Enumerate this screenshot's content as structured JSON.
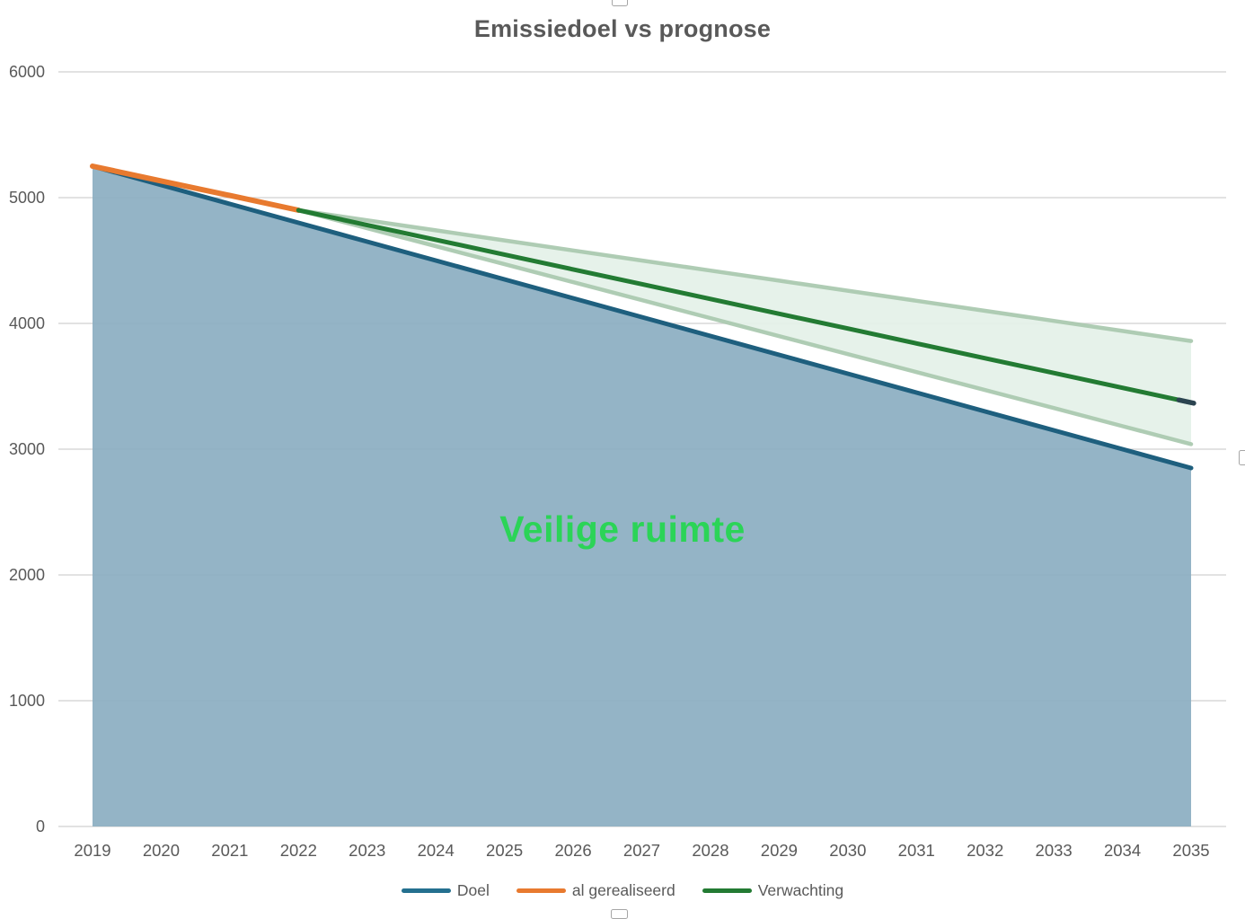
{
  "chart": {
    "title": "Emissiedoel vs prognose",
    "title_color": "#595959"
  },
  "legend": {
    "items": [
      {
        "label": "Doel",
        "color": "#24708F"
      },
      {
        "label": "al gerealiseerd",
        "color": "#E87A2F"
      },
      {
        "label": "Verwachting",
        "color": "#237B33"
      }
    ]
  },
  "selection": {
    "handle_border": "#A6A6A6",
    "handle_fill": "#FFFFFF"
  },
  "chart_data": {
    "type": "area",
    "title": "Emissiedoel vs prognose",
    "xlabel": "",
    "ylabel": "",
    "x": [
      2019,
      2020,
      2021,
      2022,
      2023,
      2024,
      2025,
      2026,
      2027,
      2028,
      2029,
      2030,
      2031,
      2032,
      2033,
      2034,
      2035
    ],
    "ylim": [
      0,
      6000
    ],
    "y_ticks": [
      0,
      1000,
      2000,
      3000,
      4000,
      5000,
      6000
    ],
    "grid": true,
    "grid_color": "#D9D9D9",
    "tick_color": "#595959",
    "legend_position": "bottom",
    "series": [
      {
        "name": "Doel",
        "kind": "area",
        "line_color": "#1E5F7E",
        "fill_color": "#8CAEC2",
        "x": [
          2019,
          2020,
          2021,
          2022,
          2023,
          2024,
          2025,
          2026,
          2027,
          2028,
          2029,
          2030,
          2031,
          2032,
          2033,
          2034,
          2035
        ],
        "values": [
          5250,
          5100,
          4950,
          4800,
          4650,
          4500,
          4350,
          4200,
          4050,
          3900,
          3750,
          3600,
          3450,
          3300,
          3150,
          3000,
          2850
        ]
      },
      {
        "name": "al gerealiseerd",
        "kind": "line",
        "line_color": "#E87A2F",
        "x": [
          2019,
          2020,
          2021,
          2022
        ],
        "values": [
          5250,
          5133,
          5017,
          4900
        ]
      },
      {
        "name": "Verwachting",
        "kind": "line",
        "line_color": "#237B33",
        "end_marker_color": "#2B4450",
        "x": [
          2022,
          2023,
          2024,
          2025,
          2026,
          2027,
          2028,
          2029,
          2030,
          2031,
          2032,
          2033,
          2034,
          2035
        ],
        "values": [
          4900,
          4782,
          4665,
          4547,
          4429,
          4312,
          4194,
          4076,
          3959,
          3841,
          3723,
          3606,
          3488,
          3370
        ]
      }
    ],
    "uncertainty_band": {
      "fill": "#E3F1E8",
      "edge_color": "#ABC9B0",
      "x": [
        2022,
        2023,
        2024,
        2025,
        2026,
        2027,
        2028,
        2029,
        2030,
        2031,
        2032,
        2033,
        2034,
        2035
      ],
      "upper": [
        4900,
        4820,
        4740,
        4660,
        4580,
        4500,
        4420,
        4340,
        4260,
        4180,
        4100,
        4020,
        3940,
        3860
      ],
      "lower": [
        4900,
        4757,
        4614,
        4471,
        4328,
        4185,
        4042,
        3899,
        3756,
        3613,
        3470,
        3327,
        3183,
        3040
      ]
    },
    "annotation": {
      "text": "Veilige ruimte",
      "color": "#2BD457",
      "x": 2026.7,
      "y": 2350
    }
  }
}
